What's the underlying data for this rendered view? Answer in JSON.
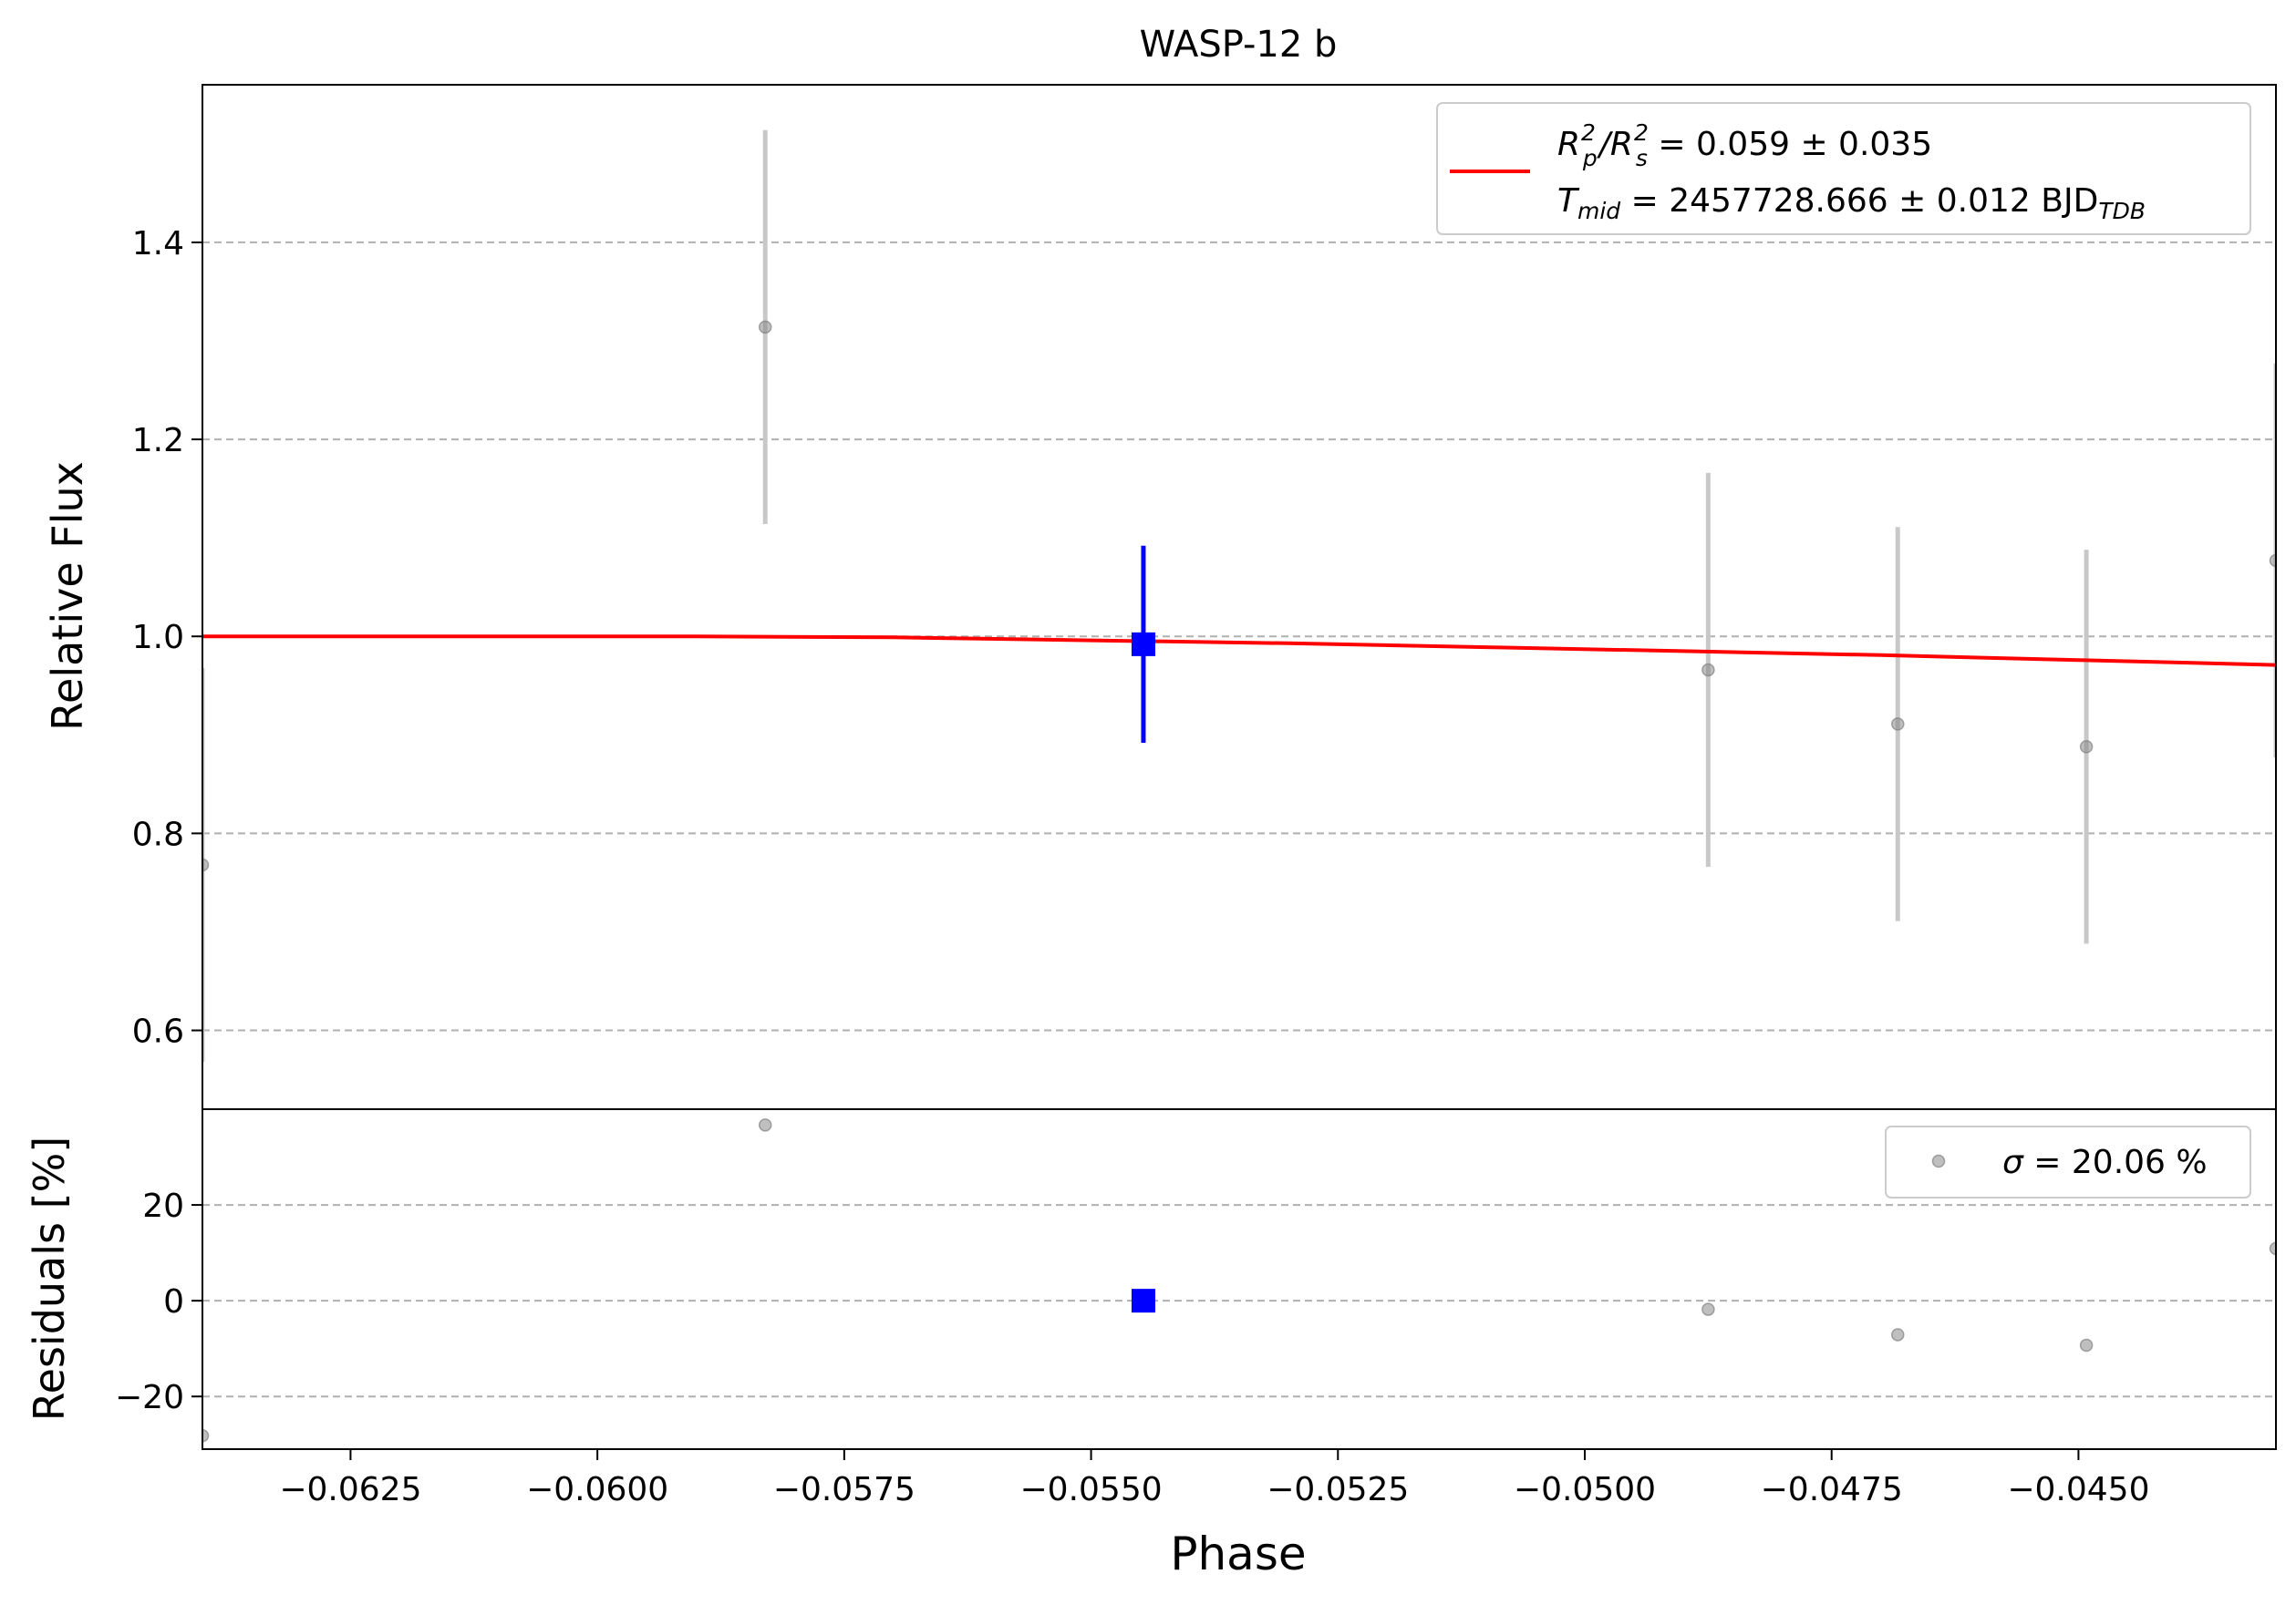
{
  "chart_data": [
    {
      "type": "scatter",
      "panel": "main",
      "title": "WASP-12 b",
      "xlabel": "Phase",
      "ylabel": "Relative Flux",
      "xlim": [
        -0.064,
        -0.043
      ],
      "ylim": [
        0.52,
        1.56
      ],
      "yticks": [
        0.6,
        0.8,
        1.0,
        1.2,
        1.4
      ],
      "ytick_labels": [
        "0.6",
        "0.8",
        "1.0",
        "1.2",
        "1.4"
      ],
      "grid": "y dashed",
      "legend_position": "top-right",
      "legend": {
        "fit_line": {
          "line1_prefix": "R",
          "line1_p_sub": "p",
          "line1_p_sup": "2",
          "line1_slash": "/R",
          "line1_s_sub": "s",
          "line1_s_sup": "2",
          "line1_value": " = 0.059 ± 0.035",
          "line2_prefix": "T",
          "line2_sub": "mid",
          "line2_value": " = 2457728.666 ± 0.012 BJD",
          "line2_value_sub": "TDB"
        }
      },
      "colors": {
        "data": "#808080",
        "errorbar": "#c8c8c8",
        "binned": "#0000ff",
        "model": "#ff0000"
      },
      "series": [
        {
          "points": [
            {
              "x": -0.064,
              "y": 0.768,
              "err": 0.2
            },
            {
              "x": -0.0583,
              "y": 1.314,
              "err": 0.2
            },
            {
              "x": -0.04875,
              "y": 0.966,
              "err": 0.2
            },
            {
              "x": -0.04683,
              "y": 0.911,
              "err": 0.2
            },
            {
              "x": -0.04492,
              "y": 0.888,
              "err": 0.2
            },
            {
              "x": -0.043,
              "y": 1.077,
              "err": 0.2
            }
          ]
        },
        {
          "points": [
            {
              "x": -0.05447,
              "y": 0.992,
              "err": 0.1
            }
          ]
        },
        {
          "x": [
            -0.064,
            -0.061,
            -0.059,
            -0.057,
            -0.055,
            -0.053,
            -0.051,
            -0.049,
            -0.047,
            -0.045,
            -0.043
          ],
          "y": [
            1.0,
            1.0,
            1.0,
            0.999,
            0.996,
            0.993,
            0.989,
            0.985,
            0.981,
            0.976,
            0.971
          ]
        }
      ]
    },
    {
      "type": "scatter",
      "panel": "residuals",
      "xlabel": "Phase",
      "ylabel": "Residuals [%]",
      "xlim": [
        -0.064,
        -0.043
      ],
      "ylim": [
        -31,
        40
      ],
      "xticks": [
        -0.0625,
        -0.06,
        -0.0575,
        -0.055,
        -0.0525,
        -0.05,
        -0.0475,
        -0.045
      ],
      "xtick_labels": [
        "−0.0625",
        "−0.0600",
        "−0.0575",
        "−0.0550",
        "−0.0525",
        "−0.0500",
        "−0.0475",
        "−0.0450"
      ],
      "yticks": [
        -20,
        0,
        20
      ],
      "ytick_labels": [
        "−20",
        "0",
        "20"
      ],
      "grid": "y dashed",
      "legend_position": "top-right",
      "legend": {
        "sigma_symbol": "σ",
        "sigma_value": " = 20.06 %"
      },
      "series": [
        {
          "points": [
            {
              "x": -0.064,
              "y": -28.2
            },
            {
              "x": -0.0583,
              "y": 36.7
            },
            {
              "x": -0.04875,
              "y": -1.8
            },
            {
              "x": -0.04683,
              "y": -7.1
            },
            {
              "x": -0.04492,
              "y": -9.3
            },
            {
              "x": -0.043,
              "y": 10.9
            }
          ]
        },
        {
          "points": [
            {
              "x": -0.05447,
              "y": 0.0
            }
          ]
        }
      ]
    }
  ]
}
